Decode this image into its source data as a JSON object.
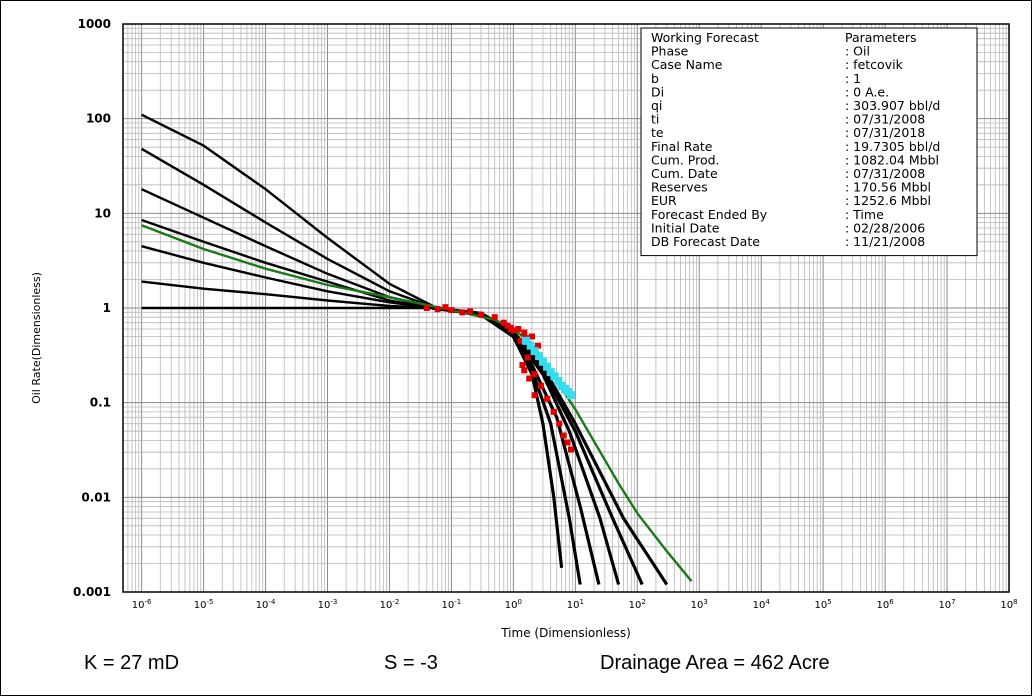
{
  "chart_data": {
    "type": "line",
    "title": "",
    "xlabel": "Time (Dimensionless)",
    "ylabel": "Oil Rate(Dimensionless)",
    "xscale": "log",
    "yscale": "log",
    "xlim": [
      5e-07,
      100000000
    ],
    "ylim": [
      0.001,
      1000
    ],
    "grid": true,
    "x_tick_labels": [
      {
        "base": "10",
        "exp": "-6"
      },
      {
        "base": "10",
        "exp": "-5"
      },
      {
        "base": "10",
        "exp": "-4"
      },
      {
        "base": "10",
        "exp": "-3"
      },
      {
        "base": "10",
        "exp": "-2"
      },
      {
        "base": "10",
        "exp": "-1"
      },
      {
        "base": "10",
        "exp": "0"
      },
      {
        "base": "10",
        "exp": "1"
      },
      {
        "base": "10",
        "exp": "2"
      },
      {
        "base": "10",
        "exp": "3"
      },
      {
        "base": "10",
        "exp": "4"
      },
      {
        "base": "10",
        "exp": "5"
      },
      {
        "base": "10",
        "exp": "6"
      },
      {
        "base": "10",
        "exp": "7"
      },
      {
        "base": "10",
        "exp": "8"
      }
    ],
    "y_tick_labels": [
      "1000",
      "100",
      "10",
      "1",
      "0.1",
      "0.01",
      "0.001"
    ],
    "type_curves_early": [
      {
        "color": "#000000",
        "x": [
          1e-06,
          1e-05,
          0.0001,
          0.001,
          0.01,
          0.05
        ],
        "y": [
          110,
          52,
          18,
          5.5,
          1.8,
          1.05
        ]
      },
      {
        "color": "#000000",
        "x": [
          1e-06,
          1e-05,
          0.0001,
          0.001,
          0.01,
          0.05
        ],
        "y": [
          48,
          20,
          8,
          3.3,
          1.5,
          1.03
        ]
      },
      {
        "color": "#000000",
        "x": [
          1e-06,
          1e-05,
          0.0001,
          0.001,
          0.01,
          0.05
        ],
        "y": [
          18,
          9,
          4.5,
          2.3,
          1.3,
          1.02
        ]
      },
      {
        "color": "#000000",
        "x": [
          1e-06,
          1e-05,
          0.0001,
          0.001,
          0.01,
          0.05
        ],
        "y": [
          8.5,
          5,
          3,
          1.9,
          1.2,
          1.0
        ]
      },
      {
        "color": "#000000",
        "x": [
          1e-06,
          1e-05,
          0.0001,
          0.001,
          0.01,
          0.05
        ],
        "y": [
          4.5,
          3,
          2.1,
          1.5,
          1.15,
          1.0
        ]
      },
      {
        "color": "#000000",
        "x": [
          1e-06,
          1e-05,
          0.0001,
          0.001,
          0.01,
          0.05
        ],
        "y": [
          1.9,
          1.6,
          1.4,
          1.2,
          1.05,
          1.0
        ]
      },
      {
        "color": "#000000",
        "x": [
          1e-06,
          1e-05,
          0.0001,
          0.001,
          0.01,
          0.05
        ],
        "y": [
          1.0,
          1.0,
          1.0,
          1.0,
          1.0,
          1.0
        ]
      }
    ],
    "type_curves_late": [
      {
        "color": "#000000",
        "x": [
          0.05,
          0.3,
          1,
          2,
          3,
          4.5,
          6
        ],
        "y": [
          1.0,
          0.85,
          0.5,
          0.2,
          0.06,
          0.01,
          0.0018
        ]
      },
      {
        "color": "#000000",
        "x": [
          0.05,
          0.3,
          1,
          2,
          4,
          8,
          12
        ],
        "y": [
          1.0,
          0.85,
          0.5,
          0.22,
          0.06,
          0.006,
          0.0012
        ]
      },
      {
        "color": "#000000",
        "x": [
          0.05,
          0.3,
          1,
          2,
          5,
          12,
          24
        ],
        "y": [
          1.0,
          0.86,
          0.52,
          0.25,
          0.07,
          0.008,
          0.0012
        ]
      },
      {
        "color": "#000000",
        "x": [
          0.05,
          0.3,
          1,
          3,
          8,
          25,
          50
        ],
        "y": [
          1.0,
          0.86,
          0.53,
          0.2,
          0.05,
          0.006,
          0.0012
        ]
      },
      {
        "color": "#000000",
        "x": [
          0.05,
          0.3,
          1,
          3,
          10,
          40,
          120
        ],
        "y": [
          1.0,
          0.87,
          0.55,
          0.22,
          0.05,
          0.006,
          0.0012
        ]
      },
      {
        "color": "#000000",
        "x": [
          0.05,
          0.3,
          1,
          3,
          10,
          60,
          300
        ],
        "y": [
          1.0,
          0.88,
          0.56,
          0.24,
          0.06,
          0.006,
          0.0012
        ]
      }
    ],
    "green_forecast": {
      "color": "#1a7a1a",
      "x": [
        1e-06,
        1e-05,
        0.0001,
        0.001,
        0.01,
        0.1,
        0.5,
        1,
        2,
        5,
        10,
        50,
        100,
        300,
        750
      ],
      "y": [
        7.5,
        4.2,
        2.6,
        1.75,
        1.3,
        0.95,
        0.75,
        0.6,
        0.42,
        0.17,
        0.085,
        0.014,
        0.0068,
        0.0027,
        0.0013
      ]
    },
    "red_data": {
      "color": "#e00000",
      "x": [
        0.04,
        0.06,
        0.08,
        0.1,
        0.15,
        0.2,
        0.3,
        0.5,
        0.7,
        0.9,
        1.0,
        1.2,
        1.5,
        1.3,
        1.6,
        2.0,
        2.5,
        1.4,
        1.7,
        2.2,
        2.8,
        3.5,
        4.5,
        5.5,
        6.5,
        7.5,
        8.5,
        1.5,
        1.8,
        2.2,
        0.9,
        0.8
      ],
      "y": [
        1.0,
        0.97,
        1.02,
        0.95,
        0.9,
        0.92,
        0.85,
        0.8,
        0.7,
        0.62,
        0.58,
        0.6,
        0.55,
        0.45,
        0.48,
        0.5,
        0.4,
        0.25,
        0.3,
        0.2,
        0.15,
        0.11,
        0.08,
        0.06,
        0.045,
        0.038,
        0.032,
        0.22,
        0.18,
        0.12,
        0.6,
        0.65
      ]
    },
    "cyan_data": {
      "color": "#33ddee",
      "x": [
        1.6,
        1.9,
        2.2,
        2.6,
        3.0,
        3.5,
        4.0,
        4.6,
        5.3,
        6.0,
        6.8,
        7.6,
        8.5
      ],
      "y": [
        0.45,
        0.4,
        0.35,
        0.31,
        0.27,
        0.24,
        0.21,
        0.19,
        0.17,
        0.15,
        0.14,
        0.13,
        0.12
      ]
    }
  },
  "parameters_box": {
    "rows": [
      {
        "label": "Working Forecast",
        "value": "Parameters"
      },
      {
        "label": "Phase",
        "value": ": Oil"
      },
      {
        "label": "Case Name",
        "value": ": fetcovik"
      },
      {
        "label": "b",
        "value": ": 1"
      },
      {
        "label": "Di",
        "value": ": 0 A.e."
      },
      {
        "label": "qi",
        "value": ": 303.907 bbl/d"
      },
      {
        "label": "ti",
        "value": ": 07/31/2008"
      },
      {
        "label": "te",
        "value": ": 07/31/2018"
      },
      {
        "label": "Final Rate",
        "value": ": 19.7305 bbl/d"
      },
      {
        "label": "Cum. Prod.",
        "value": ": 1082.04 Mbbl"
      },
      {
        "label": "Cum. Date",
        "value": ": 07/31/2008"
      },
      {
        "label": "Reserves",
        "value": ": 170.56 Mbbl"
      },
      {
        "label": "EUR",
        "value": ": 1252.6 Mbbl"
      },
      {
        "label": "Forecast Ended By",
        "value": ": Time"
      },
      {
        "label": "Initial Date",
        "value": ": 02/28/2006"
      },
      {
        "label": "DB Forecast Date",
        "value": ": 11/21/2008"
      }
    ]
  },
  "footer": {
    "k": "K = 27 mD",
    "s": "S = -3",
    "drainage": "Drainage Area = 462 Acre"
  }
}
